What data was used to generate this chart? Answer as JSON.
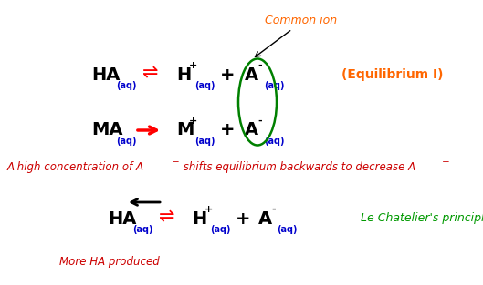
{
  "bg_color": "#ffffff",
  "fig_width": 5.29,
  "fig_height": 3.13,
  "dpi": 100,
  "common_ion_label": "Common ion",
  "common_ion_color": "#ff6600",
  "common_ion_fontsize": 9,
  "equilibrium_label": "(Equilibrium I)",
  "equilibrium_label_color": "#ff6600",
  "equilibrium_label_fontsize": 10,
  "le_chatelier_text": "Le Chatelier's principle",
  "le_chatelier_color": "#009900",
  "le_chatelier_fontsize": 9,
  "mid_text_color": "#cc0000",
  "mid_text_fontsize": 8.5,
  "more_ha_text": "More HA produced",
  "more_ha_color": "#cc0000",
  "more_ha_fontsize": 8.5,
  "label_fontsize_big": 14,
  "label_fontsize_sub": 7,
  "sup_fontsize": 7,
  "sub_color": "#0000cc",
  "black": "#000000",
  "red": "#ff0000"
}
